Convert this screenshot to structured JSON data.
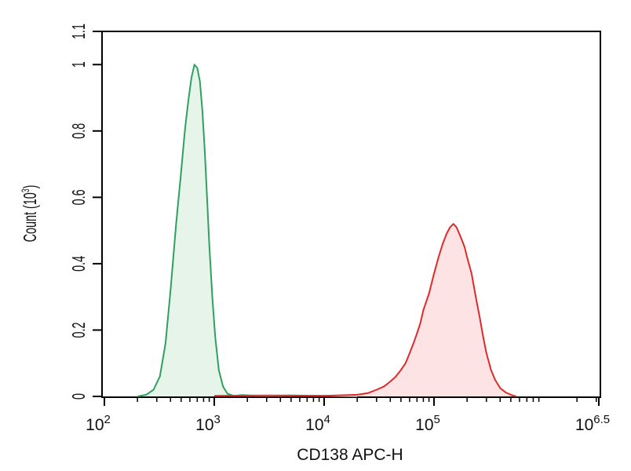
{
  "chart_data": {
    "type": "area",
    "title": "",
    "xlabel": "CD138 APC-H",
    "ylabel": "Count (10^3)",
    "ylabel_parts": {
      "base": "Count (10",
      "exp": "3",
      "close": ")"
    },
    "x_scale": "log10",
    "xlim": [
      100,
      3162278
    ],
    "ylim": [
      0,
      1.1
    ],
    "grid": false,
    "legend": "none",
    "x_ticks": [
      {
        "base": "10",
        "exp": "2",
        "value": 100
      },
      {
        "base": "10",
        "exp": "3",
        "value": 1000
      },
      {
        "base": "10",
        "exp": "4",
        "value": 10000
      },
      {
        "base": "10",
        "exp": "5",
        "value": 100000
      },
      {
        "base": "10",
        "exp": "6.5",
        "value": 3162278
      }
    ],
    "y_ticks": [
      "0",
      "0.2",
      "0.4",
      "0.6",
      "0.8",
      "1",
      "1.1"
    ],
    "y_tick_values": [
      0,
      0.2,
      0.4,
      0.6,
      0.8,
      1,
      1.1
    ],
    "series": [
      {
        "color": "#2ea060",
        "fill": "#e6f4ea",
        "x": [
          200,
          240,
          280,
          320,
          360,
          400,
          450,
          500,
          540,
          580,
          620,
          660,
          700,
          740,
          780,
          820,
          860,
          900,
          960,
          1020,
          1100,
          1200,
          1320,
          1500,
          1800,
          2500,
          5000,
          10000,
          20000
        ],
        "y": [
          0,
          0.005,
          0.02,
          0.06,
          0.16,
          0.32,
          0.52,
          0.68,
          0.8,
          0.89,
          0.96,
          1.0,
          0.99,
          0.95,
          0.86,
          0.74,
          0.6,
          0.46,
          0.3,
          0.18,
          0.08,
          0.03,
          0.008,
          0.002,
          0.004,
          0.002,
          0.003,
          0.002,
          0
        ]
      },
      {
        "color": "#dd2b2b",
        "fill": "#fde3e3",
        "x": [
          1000,
          3000,
          10000,
          20000,
          25000,
          30000,
          35000,
          40000,
          45000,
          50000,
          55000,
          60000,
          65000,
          70000,
          75000,
          80000,
          90000,
          100000,
          110000,
          120000,
          130000,
          140000,
          150000,
          160000,
          170000,
          180000,
          190000,
          200000,
          220000,
          240000,
          260000,
          280000,
          300000,
          330000,
          360000,
          400000,
          450000,
          500000,
          560000
        ],
        "y": [
          0.002,
          0.003,
          0.002,
          0.005,
          0.01,
          0.02,
          0.03,
          0.045,
          0.06,
          0.08,
          0.1,
          0.13,
          0.16,
          0.19,
          0.22,
          0.26,
          0.31,
          0.37,
          0.42,
          0.46,
          0.49,
          0.51,
          0.52,
          0.51,
          0.49,
          0.47,
          0.45,
          0.42,
          0.37,
          0.3,
          0.24,
          0.18,
          0.13,
          0.08,
          0.05,
          0.025,
          0.012,
          0.005,
          0
        ]
      }
    ]
  }
}
